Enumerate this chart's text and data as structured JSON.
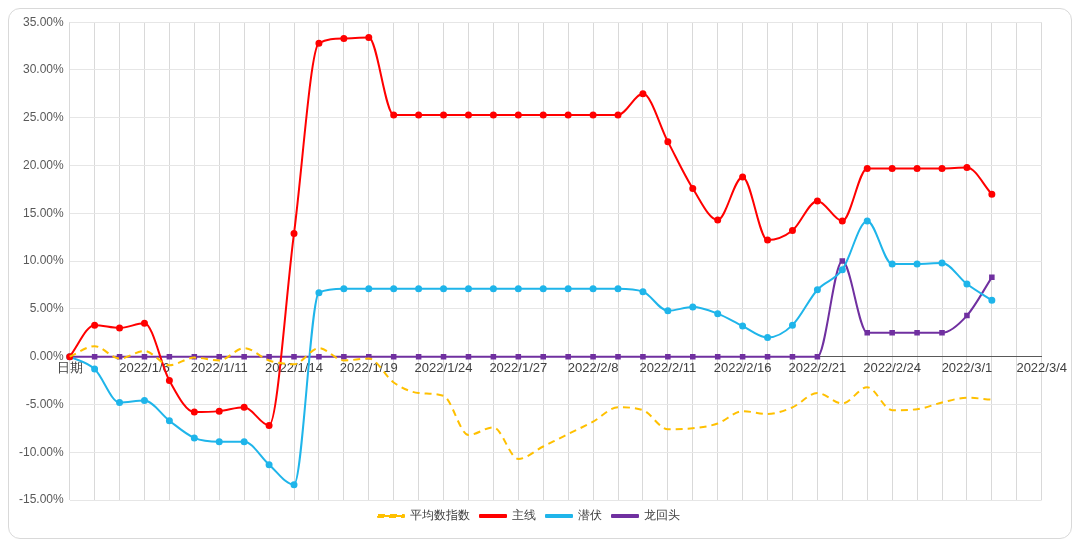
{
  "chart_data": {
    "type": "line",
    "categories": [
      "日期",
      null,
      null,
      "2022/1/6",
      null,
      null,
      "2022/1/11",
      null,
      null,
      "2022/1/14",
      null,
      null,
      "2022/1/19",
      null,
      null,
      "2022/1/24",
      null,
      null,
      "2022/1/27",
      null,
      null,
      "2022/2/8",
      null,
      null,
      "2022/2/11",
      null,
      null,
      "2022/2/16",
      null,
      null,
      "2022/2/21",
      null,
      null,
      "2022/2/24",
      null,
      null,
      "2022/3/1",
      null,
      null,
      "2022/3/4"
    ],
    "series": [
      {
        "name": "平均数指数",
        "color": "#ffc000",
        "line_style": "dashed",
        "marker": "none",
        "values": [
          0,
          1.1,
          -0.2,
          0.6,
          -0.9,
          -0.1,
          -0.4,
          0.9,
          -0.4,
          -0.8,
          0.9,
          -0.4,
          -0.2,
          -2.7,
          -3.8,
          -4.1,
          -8.2,
          -7.4,
          -10.7,
          -9.4,
          -8.1,
          -6.8,
          -5.3,
          -5.6,
          -7.6,
          -7.5,
          -7.0,
          -5.7,
          -6.0,
          -5.3,
          -3.8,
          -4.9,
          -3.2,
          -5.6,
          -5.5,
          -4.8,
          -4.3,
          -4.5,
          null,
          null
        ]
      },
      {
        "name": "主线",
        "color": "#ff0000",
        "line_style": "solid",
        "marker": "circle",
        "values": [
          0,
          3.3,
          3.0,
          3.5,
          -2.5,
          -5.8,
          -5.7,
          -5.3,
          -7.2,
          12.9,
          32.8,
          33.3,
          33.4,
          25.3,
          25.3,
          25.3,
          25.3,
          25.3,
          25.3,
          25.3,
          25.3,
          25.3,
          25.3,
          27.5,
          22.5,
          17.6,
          14.3,
          18.8,
          12.2,
          13.2,
          16.3,
          14.2,
          19.7,
          19.7,
          19.7,
          19.7,
          19.8,
          17.0,
          null,
          null
        ]
      },
      {
        "name": "潜伏",
        "color": "#1fb5ea",
        "line_style": "solid",
        "marker": "circle",
        "values": [
          0,
          -1.3,
          -4.8,
          -4.6,
          -6.7,
          -8.5,
          -8.9,
          -8.9,
          -11.3,
          -13.4,
          6.7,
          7.1,
          7.1,
          7.1,
          7.1,
          7.1,
          7.1,
          7.1,
          7.1,
          7.1,
          7.1,
          7.1,
          7.1,
          6.8,
          4.8,
          5.2,
          4.5,
          3.2,
          2.0,
          3.3,
          7.0,
          9.1,
          14.2,
          9.7,
          9.7,
          9.8,
          7.6,
          5.9,
          null,
          null
        ]
      },
      {
        "name": "龙回头",
        "color": "#7030a0",
        "line_style": "solid",
        "marker": "square",
        "values": [
          0,
          0,
          0,
          0,
          0,
          0,
          0,
          0,
          0,
          0,
          0,
          0,
          0,
          0,
          0,
          0,
          0,
          0,
          0,
          0,
          0,
          0,
          0,
          0,
          0,
          0,
          0,
          0,
          0,
          0,
          0,
          10.0,
          2.5,
          2.5,
          2.5,
          2.5,
          4.3,
          8.3,
          null,
          null
        ]
      }
    ],
    "ylim": [
      -15,
      35
    ],
    "yticks": [
      {
        "value": -15,
        "label": "-15.00%"
      },
      {
        "value": -10,
        "label": "-10.00%"
      },
      {
        "value": -5,
        "label": "-5.00%"
      },
      {
        "value": 0,
        "label": "0.00%"
      },
      {
        "value": 5,
        "label": "5.00%"
      },
      {
        "value": 10,
        "label": "10.00%"
      },
      {
        "value": 15,
        "label": "15.00%"
      },
      {
        "value": 20,
        "label": "20.00%"
      },
      {
        "value": 25,
        "label": "25.00%"
      },
      {
        "value": 30,
        "label": "30.00%"
      },
      {
        "value": 35,
        "label": "35.00%"
      }
    ],
    "grid": true,
    "legend": "bottom"
  }
}
